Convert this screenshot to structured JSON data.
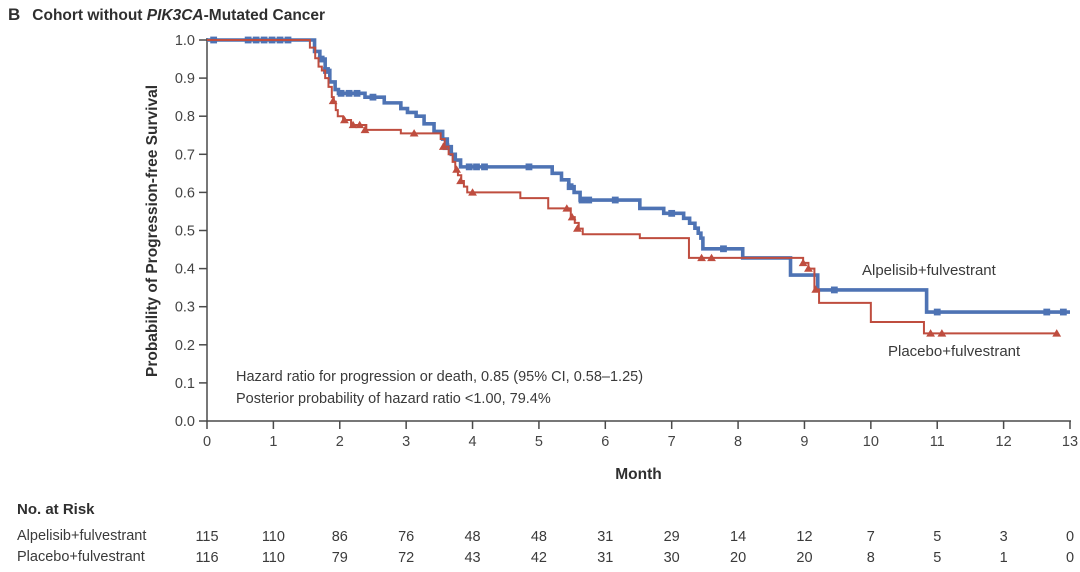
{
  "title": {
    "panel_label": "B",
    "prefix": "Cohort without ",
    "gene": "PIK3CA",
    "suffix": "-Mutated Cancer"
  },
  "chart_data": {
    "type": "line",
    "subtype": "kaplan-meier-step",
    "title": "B Cohort without PIK3CA-Mutated Cancer",
    "xlabel": "Month",
    "ylabel": "Probability of Progression-free Survival",
    "xlim": [
      0,
      13
    ],
    "ylim": [
      0.0,
      1.0
    ],
    "grid": false,
    "x_ticks": [
      0,
      1,
      2,
      3,
      4,
      5,
      6,
      7,
      8,
      9,
      10,
      11,
      12,
      13
    ],
    "y_ticks": [
      "0.0",
      "0.1",
      "0.2",
      "0.3",
      "0.4",
      "0.5",
      "0.6",
      "0.7",
      "0.8",
      "0.9",
      "1.0"
    ],
    "annotations": [
      "Hazard ratio for progression or death, 0.85 (95% CI, 0.58–1.25)",
      "Posterior probability of hazard ratio <1.00, 79.4%"
    ],
    "axis_color": "#4a4a4a",
    "tick_label_color": "#444444",
    "series": [
      {
        "name": "Alpelisib+fulvestrant",
        "color": "#4e73b4",
        "line_width": 3.6,
        "marker": "square",
        "start": [
          0,
          1.0
        ],
        "end_month": 13.0,
        "steps": [
          [
            1.62,
            0.97
          ],
          [
            1.7,
            0.95
          ],
          [
            1.78,
            0.92
          ],
          [
            1.85,
            0.89
          ],
          [
            1.93,
            0.87
          ],
          [
            1.98,
            0.86
          ],
          [
            2.38,
            0.85
          ],
          [
            2.67,
            0.835
          ],
          [
            2.92,
            0.82
          ],
          [
            3.02,
            0.81
          ],
          [
            3.15,
            0.8
          ],
          [
            3.27,
            0.78
          ],
          [
            3.42,
            0.76
          ],
          [
            3.55,
            0.74
          ],
          [
            3.62,
            0.72
          ],
          [
            3.68,
            0.7
          ],
          [
            3.74,
            0.685
          ],
          [
            3.82,
            0.667
          ],
          [
            5.2,
            0.65
          ],
          [
            5.34,
            0.633
          ],
          [
            5.45,
            0.615
          ],
          [
            5.53,
            0.6
          ],
          [
            5.62,
            0.58
          ],
          [
            6.52,
            0.558
          ],
          [
            6.88,
            0.545
          ],
          [
            7.18,
            0.532
          ],
          [
            7.27,
            0.519
          ],
          [
            7.35,
            0.506
          ],
          [
            7.4,
            0.493
          ],
          [
            7.44,
            0.48
          ],
          [
            7.47,
            0.452
          ],
          [
            8.07,
            0.428
          ],
          [
            8.79,
            0.383
          ],
          [
            9.2,
            0.344
          ],
          [
            10.84,
            0.286
          ]
        ],
        "censor_marks": [
          [
            0.1,
            1.0
          ],
          [
            0.62,
            1.0
          ],
          [
            0.74,
            1.0
          ],
          [
            0.86,
            1.0
          ],
          [
            0.98,
            1.0
          ],
          [
            1.1,
            1.0
          ],
          [
            1.22,
            1.0
          ],
          [
            1.72,
            0.95
          ],
          [
            1.8,
            0.92
          ],
          [
            2.02,
            0.86
          ],
          [
            2.14,
            0.86
          ],
          [
            2.26,
            0.86
          ],
          [
            2.5,
            0.85
          ],
          [
            3.6,
            0.72
          ],
          [
            3.95,
            0.667
          ],
          [
            4.06,
            0.667
          ],
          [
            4.18,
            0.667
          ],
          [
            4.85,
            0.667
          ],
          [
            5.47,
            0.615
          ],
          [
            5.65,
            0.58
          ],
          [
            5.75,
            0.58
          ],
          [
            6.15,
            0.58
          ],
          [
            7.0,
            0.545
          ],
          [
            7.78,
            0.452
          ],
          [
            9.45,
            0.344
          ],
          [
            11.0,
            0.286
          ],
          [
            12.65,
            0.286
          ],
          [
            12.9,
            0.286
          ]
        ]
      },
      {
        "name": "Placebo+fulvestrant",
        "color": "#bf4d3f",
        "line_width": 2,
        "marker": "triangle",
        "start": [
          0,
          1.0
        ],
        "end_month": 12.8,
        "steps": [
          [
            1.55,
            0.98
          ],
          [
            1.63,
            0.952
          ],
          [
            1.68,
            0.93
          ],
          [
            1.73,
            0.92
          ],
          [
            1.78,
            0.9
          ],
          [
            1.83,
            0.877
          ],
          [
            1.88,
            0.85
          ],
          [
            1.91,
            0.838
          ],
          [
            1.94,
            0.816
          ],
          [
            1.97,
            0.8
          ],
          [
            2.05,
            0.79
          ],
          [
            2.17,
            0.777
          ],
          [
            2.4,
            0.764
          ],
          [
            2.92,
            0.755
          ],
          [
            3.52,
            0.74
          ],
          [
            3.58,
            0.72
          ],
          [
            3.64,
            0.7
          ],
          [
            3.7,
            0.68
          ],
          [
            3.74,
            0.66
          ],
          [
            3.78,
            0.645
          ],
          [
            3.83,
            0.63
          ],
          [
            3.87,
            0.615
          ],
          [
            3.92,
            0.6
          ],
          [
            4.72,
            0.585
          ],
          [
            5.14,
            0.558
          ],
          [
            5.48,
            0.535
          ],
          [
            5.54,
            0.52
          ],
          [
            5.6,
            0.505
          ],
          [
            5.66,
            0.49
          ],
          [
            6.52,
            0.48
          ],
          [
            7.26,
            0.428
          ],
          [
            8.98,
            0.415
          ],
          [
            9.06,
            0.4
          ],
          [
            9.15,
            0.345
          ],
          [
            9.22,
            0.31
          ],
          [
            10.0,
            0.26
          ],
          [
            10.8,
            0.23
          ]
        ],
        "censor_marks": [
          [
            1.9,
            0.84
          ],
          [
            2.07,
            0.79
          ],
          [
            2.2,
            0.777
          ],
          [
            2.3,
            0.777
          ],
          [
            2.38,
            0.764
          ],
          [
            3.12,
            0.755
          ],
          [
            3.56,
            0.72
          ],
          [
            3.76,
            0.66
          ],
          [
            3.82,
            0.63
          ],
          [
            4.0,
            0.6
          ],
          [
            5.42,
            0.558
          ],
          [
            5.5,
            0.535
          ],
          [
            5.58,
            0.505
          ],
          [
            7.45,
            0.428
          ],
          [
            7.6,
            0.428
          ],
          [
            8.98,
            0.415
          ],
          [
            9.06,
            0.4
          ],
          [
            9.17,
            0.345
          ],
          [
            10.9,
            0.23
          ],
          [
            11.07,
            0.23
          ],
          [
            12.8,
            0.23
          ]
        ]
      }
    ],
    "at_risk": {
      "header": "No. at Risk",
      "months": [
        0,
        1,
        2,
        3,
        4,
        5,
        6,
        7,
        8,
        9,
        10,
        11,
        12,
        13
      ],
      "rows": [
        {
          "label": "Alpelisib+fulvestrant",
          "values": [
            115,
            110,
            86,
            76,
            48,
            48,
            31,
            29,
            14,
            12,
            7,
            5,
            3,
            0
          ]
        },
        {
          "label": "Placebo+fulvestrant",
          "values": [
            116,
            110,
            79,
            72,
            43,
            42,
            31,
            30,
            20,
            20,
            8,
            5,
            1,
            0
          ]
        }
      ]
    }
  }
}
